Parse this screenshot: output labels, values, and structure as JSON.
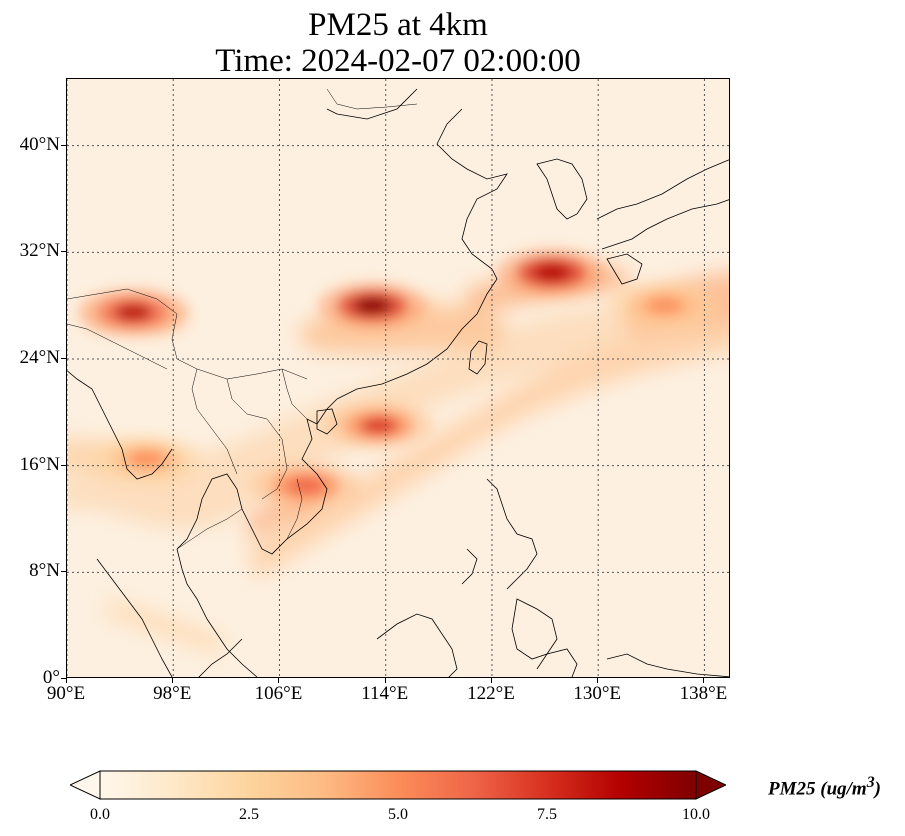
{
  "title": {
    "line1": "PM25 at 4km",
    "line2": "Time: 2024-02-07 02:00:00"
  },
  "map": {
    "projection": "PlateCarree",
    "extent": {
      "lon_min": 90,
      "lon_max": 140,
      "lat_min": 0,
      "lat_max": 45
    },
    "gridlines": "dotted",
    "x_ticks": [
      "90°E",
      "98°E",
      "106°E",
      "114°E",
      "122°E",
      "130°E",
      "138°E"
    ],
    "y_ticks": [
      "0°",
      "8°N",
      "16°N",
      "24°N",
      "32°N",
      "40°N"
    ],
    "colormap": "OrRd",
    "high_concentration_areas": [
      {
        "lon": 113,
        "lat": 28,
        "level": 9.5
      },
      {
        "lon": 126.5,
        "lat": 30.5,
        "level": 9
      },
      {
        "lon": 95,
        "lat": 27.5,
        "level": 8.5
      },
      {
        "lon": 113.5,
        "lat": 19,
        "level": 7
      },
      {
        "lon": 108,
        "lat": 14.5,
        "level": 6.5
      },
      {
        "lon": 96,
        "lat": 16.5,
        "level": 4.5
      },
      {
        "lon": 135,
        "lat": 28,
        "level": 4.5
      }
    ]
  },
  "colorbar": {
    "label": "PM25 (ug/m",
    "label_sup": "3",
    "label_close": ")",
    "min": 0.0,
    "max": 10.0,
    "extend": "both",
    "ticks": [
      "0.0",
      "2.5",
      "5.0",
      "7.5",
      "10.0"
    ],
    "colors": [
      "#fff7ec",
      "#fee8c8",
      "#fdd49e",
      "#fdbb84",
      "#fc8d59",
      "#ef6548",
      "#d7301f",
      "#b30000",
      "#7f0000"
    ]
  }
}
